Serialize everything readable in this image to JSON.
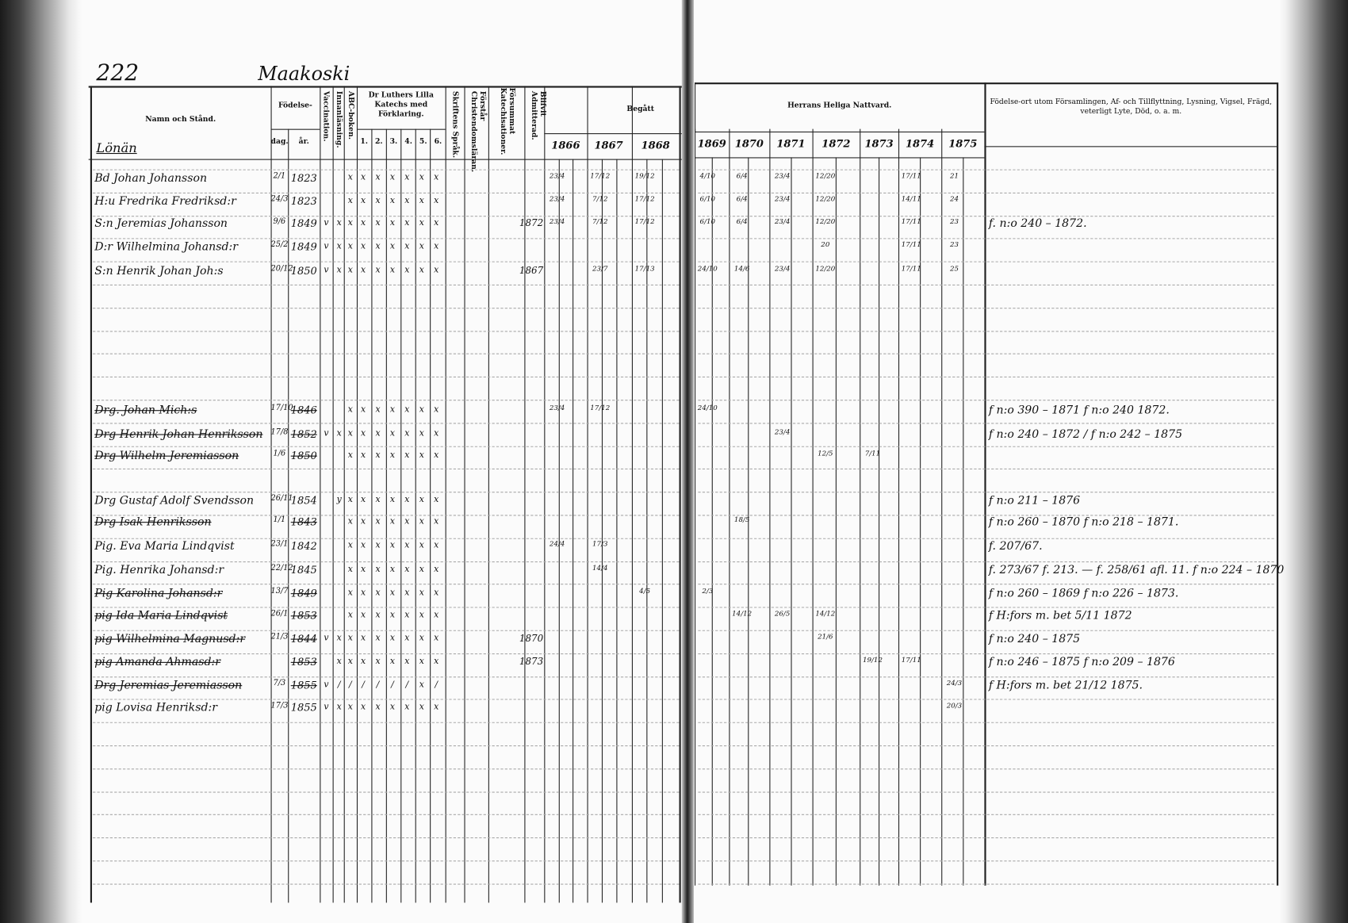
{
  "page_number": "222",
  "village": "Maakoski",
  "section_label": "Lönän",
  "headers": {
    "name": "Namn och Stånd.",
    "birth": "Födelse-",
    "birth_day": "dag.",
    "birth_year": "år.",
    "vaccination": "Vaccination.",
    "reading": "Innanläsning.",
    "abc": "ABC-boken.",
    "catechism": "Dr Luthers Lilla Katechs med Förklaring.",
    "catechism_parts": [
      "1.",
      "2.",
      "3.",
      "4.",
      "5.",
      "6."
    ],
    "scripture": "Skriftens Språk.",
    "christianity": "Förstår Christendomsläran.",
    "missed": "Försummat Katechisationer.",
    "admitted": "Blifvit Admitterad.",
    "taken": "Begått",
    "communion": "Herrans Heliga Nattvard.",
    "remarks": "Födelse-ort utom Församlingen, Af- och Tillflyttning, Lysning, Vigsel, Frägd, veterligt Lyte, Död, o. a. m.",
    "years_left": [
      "1866",
      "1867",
      "1868"
    ],
    "years_right": [
      "1869",
      "1870",
      "1871",
      "1872",
      "1873",
      "1874",
      "1875"
    ]
  },
  "rows": [
    {
      "name": "Bd Johan Johansson",
      "day": "2/1",
      "year": "1823",
      "marks": [
        "",
        "",
        "x",
        "x",
        "x",
        "x",
        "x",
        "x",
        "x"
      ],
      "admitted": "",
      "communion": [
        "23/4",
        "17/12",
        "19/12",
        "4/10",
        "6/4",
        "23/4",
        "12/20",
        "",
        "17/11",
        "",
        "21"
      ],
      "remark": "",
      "struck": false
    },
    {
      "name": "H:u Fredrika Fredriksd:r",
      "day": "24/3",
      "year": "1823",
      "marks": [
        "",
        "",
        "x",
        "x",
        "x",
        "x",
        "x",
        "x",
        "x"
      ],
      "admitted": "",
      "communion": [
        "23/4",
        "7/12",
        "17/12",
        "6/10",
        "6/4",
        "23/4",
        "12/20",
        "",
        "14/11",
        "",
        "24"
      ],
      "remark": "",
      "struck": false
    },
    {
      "name": "S:n Jeremias Johansson",
      "day": "9/6",
      "year": "1849",
      "marks": [
        "v",
        "x",
        "x",
        "x",
        "x",
        "x",
        "x",
        "x",
        "x"
      ],
      "admitted": "1872",
      "communion": [
        "23/4",
        "7/12",
        "17/12",
        "6/10",
        "6/4",
        "23/4",
        "12/20",
        "",
        "17/11",
        "",
        "23"
      ],
      "remark": "f. n:o 240 – 1872.",
      "struck": false
    },
    {
      "name": "D:r Wilhelmina Johansd:r",
      "day": "25/2",
      "year": "1849",
      "marks": [
        "v",
        "x",
        "x",
        "x",
        "x",
        "x",
        "x",
        "x",
        "x"
      ],
      "admitted": "",
      "communion": [
        "",
        "",
        "",
        "",
        "",
        "",
        "20",
        "",
        "17/11",
        "",
        "23"
      ],
      "remark": "",
      "struck": false
    },
    {
      "name": "S:n Henrik Johan Joh:s",
      "day": "20/12",
      "year": "1850",
      "marks": [
        "v",
        "x",
        "x",
        "x",
        "x",
        "x",
        "x",
        "x",
        "x"
      ],
      "admitted": "1867",
      "communion": [
        "",
        "23/7",
        "17/13",
        "24/10",
        "14/6",
        "23/4",
        "12/20",
        "",
        "17/11",
        "",
        "25"
      ],
      "remark": "",
      "struck": false
    },
    {
      "name": "Drg. Johan Mich:s",
      "day": "17/10",
      "year": "1846",
      "marks": [
        "",
        "",
        "x",
        "x",
        "x",
        "x",
        "x",
        "x",
        "x"
      ],
      "admitted": "",
      "communion": [
        "23/4",
        "17/12",
        "",
        "24/10",
        "",
        "",
        "",
        "",
        "",
        "",
        ""
      ],
      "remark": "f n:o 390 – 1871 f n:o 240 1872.",
      "struck": true
    },
    {
      "name": "Drg Henrik Johan Henriksson",
      "day": "17/8",
      "year": "1852",
      "marks": [
        "v",
        "x",
        "x",
        "x",
        "x",
        "x",
        "x",
        "x",
        "x"
      ],
      "admitted": "",
      "communion": [
        "",
        "",
        "",
        "",
        "",
        "23/4",
        "",
        "",
        "",
        "",
        ""
      ],
      "remark": "f n:o 240 – 1872 / f n:o 242 – 1875",
      "struck": true
    },
    {
      "name": "Drg Wilhelm Jeremiasson",
      "day": "1/6",
      "year": "1850",
      "marks": [
        "",
        "",
        "x",
        "x",
        "x",
        "x",
        "x",
        "x",
        "x"
      ],
      "admitted": "",
      "communion": [
        "",
        "",
        "",
        "",
        "",
        "",
        "12/5",
        "7/11",
        "",
        "",
        ""
      ],
      "remark": "",
      "struck": true
    },
    {
      "name": "Drg Gustaf Adolf Svendsson",
      "day": "26/11",
      "year": "1854",
      "marks": [
        "",
        "y",
        "x",
        "x",
        "x",
        "x",
        "x",
        "x",
        "x"
      ],
      "admitted": "",
      "communion": [
        "",
        "",
        "",
        "",
        "",
        "",
        "",
        "",
        "",
        "",
        ""
      ],
      "remark": "f n:o 211 – 1876",
      "struck": false
    },
    {
      "name": "Drg Isak Henriksson",
      "day": "1/1",
      "year": "1843",
      "marks": [
        "",
        "",
        "x",
        "x",
        "x",
        "x",
        "x",
        "x",
        "x"
      ],
      "admitted": "",
      "communion": [
        "",
        "",
        "",
        "",
        "18/5",
        "",
        "",
        "",
        "",
        "",
        ""
      ],
      "remark": "f n:o 260 – 1870 f n:o 218 – 1871.",
      "struck": true
    },
    {
      "name": "Pig. Eva Maria Lindqvist",
      "day": "23/1",
      "year": "1842",
      "marks": [
        "",
        "",
        "x",
        "x",
        "x",
        "x",
        "x",
        "x",
        "x"
      ],
      "admitted": "",
      "communion": [
        "24/4",
        "17/3",
        "",
        "",
        "",
        "",
        "",
        "",
        "",
        "",
        ""
      ],
      "remark": "f. 207/67.",
      "struck": false
    },
    {
      "name": "Pig. Henrika Johansd:r",
      "day": "22/12",
      "year": "1845",
      "marks": [
        "",
        "",
        "x",
        "x",
        "x",
        "x",
        "x",
        "x",
        "x"
      ],
      "admitted": "",
      "communion": [
        "",
        "14/4",
        "",
        "",
        "",
        "",
        "",
        "",
        "",
        "",
        ""
      ],
      "remark": "f. 273/67 f. 213. — f. 258/61 afl. 11. f n:o 224 – 1870",
      "struck": false
    },
    {
      "name": "Pig Karolina Johansd:r",
      "day": "13/7",
      "year": "1849",
      "marks": [
        "",
        "",
        "x",
        "x",
        "x",
        "x",
        "x",
        "x",
        "x"
      ],
      "admitted": "",
      "communion": [
        "",
        "",
        "4/5",
        "2/3",
        "",
        "",
        "",
        "",
        "",
        "",
        ""
      ],
      "remark": "f n:o 260 – 1869 f n:o 226 – 1873.",
      "struck": true
    },
    {
      "name": "pig Ida Maria Lindqvist",
      "day": "26/1",
      "year": "1853",
      "marks": [
        "",
        "",
        "x",
        "x",
        "x",
        "x",
        "x",
        "x",
        "x"
      ],
      "admitted": "",
      "communion": [
        "",
        "",
        "",
        "",
        "14/12",
        "26/5",
        "14/12",
        "",
        "",
        "",
        ""
      ],
      "remark": "f H:fors m. bet 5/11 1872",
      "struck": true
    },
    {
      "name": "pig Wilhelmina Magnusd:r",
      "day": "21/3",
      "year": "1844",
      "marks": [
        "v",
        "x",
        "x",
        "x",
        "x",
        "x",
        "x",
        "x",
        "x"
      ],
      "admitted": "1870",
      "communion": [
        "",
        "",
        "",
        "",
        "",
        "",
        "21/6",
        "",
        "",
        "",
        ""
      ],
      "remark": "f n:o 240 – 1875",
      "struck": true
    },
    {
      "name": "pig Amanda Ahmasd:r",
      "day": "",
      "year": "1853",
      "marks": [
        "",
        "x",
        "x",
        "x",
        "x",
        "x",
        "x",
        "x",
        "x"
      ],
      "admitted": "1873",
      "communion": [
        "",
        "",
        "",
        "",
        "",
        "",
        "",
        "19/12",
        "17/11",
        "",
        ""
      ],
      "remark": "f n:o 246 – 1875 f n:o 209 – 1876",
      "struck": true
    },
    {
      "name": "Drg Jeremias Jeremiasson",
      "day": "7/3",
      "year": "1855",
      "marks": [
        "v",
        "/",
        "/",
        "/",
        "/",
        "/",
        "/",
        "x",
        "/"
      ],
      "admitted": "",
      "communion": [
        "",
        "",
        "",
        "",
        "",
        "",
        "",
        "",
        "",
        "",
        "24/3"
      ],
      "remark": "f H:fors m. bet 21/12 1875.",
      "struck": true
    },
    {
      "name": "pig Lovisa Henriksd:r",
      "day": "17/3",
      "year": "1855",
      "marks": [
        "v",
        "x",
        "x",
        "x",
        "x",
        "x",
        "x",
        "x",
        "x"
      ],
      "admitted": "",
      "communion": [
        "",
        "",
        "",
        "",
        "",
        "",
        "",
        "",
        "",
        "",
        "20/3"
      ],
      "remark": "",
      "struck": false
    }
  ]
}
